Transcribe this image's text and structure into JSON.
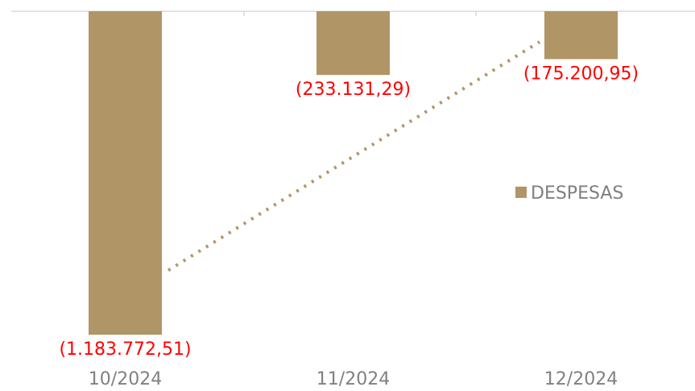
{
  "chart_data": {
    "type": "bar",
    "categories": [
      "10/2024",
      "11/2024",
      "12/2024"
    ],
    "series": [
      {
        "name": "DESPESAS",
        "values": [
          -1183772.51,
          -233131.29,
          -175200.95
        ],
        "labels": [
          "(1.183.772,51)",
          "(233.131,29)",
          "(175.200,95)"
        ],
        "color": "#B09567"
      }
    ],
    "trendline": {
      "style": "dotted",
      "color": "#B09567",
      "from_category": "10/2024",
      "to_category": "12/2024"
    },
    "ylim": [
      -1183772.51,
      0
    ],
    "legend_position": "right",
    "label_color": "#FF0000",
    "tick_label_color": "#808080",
    "axis_color": "#D9D9D9",
    "grid": false
  }
}
